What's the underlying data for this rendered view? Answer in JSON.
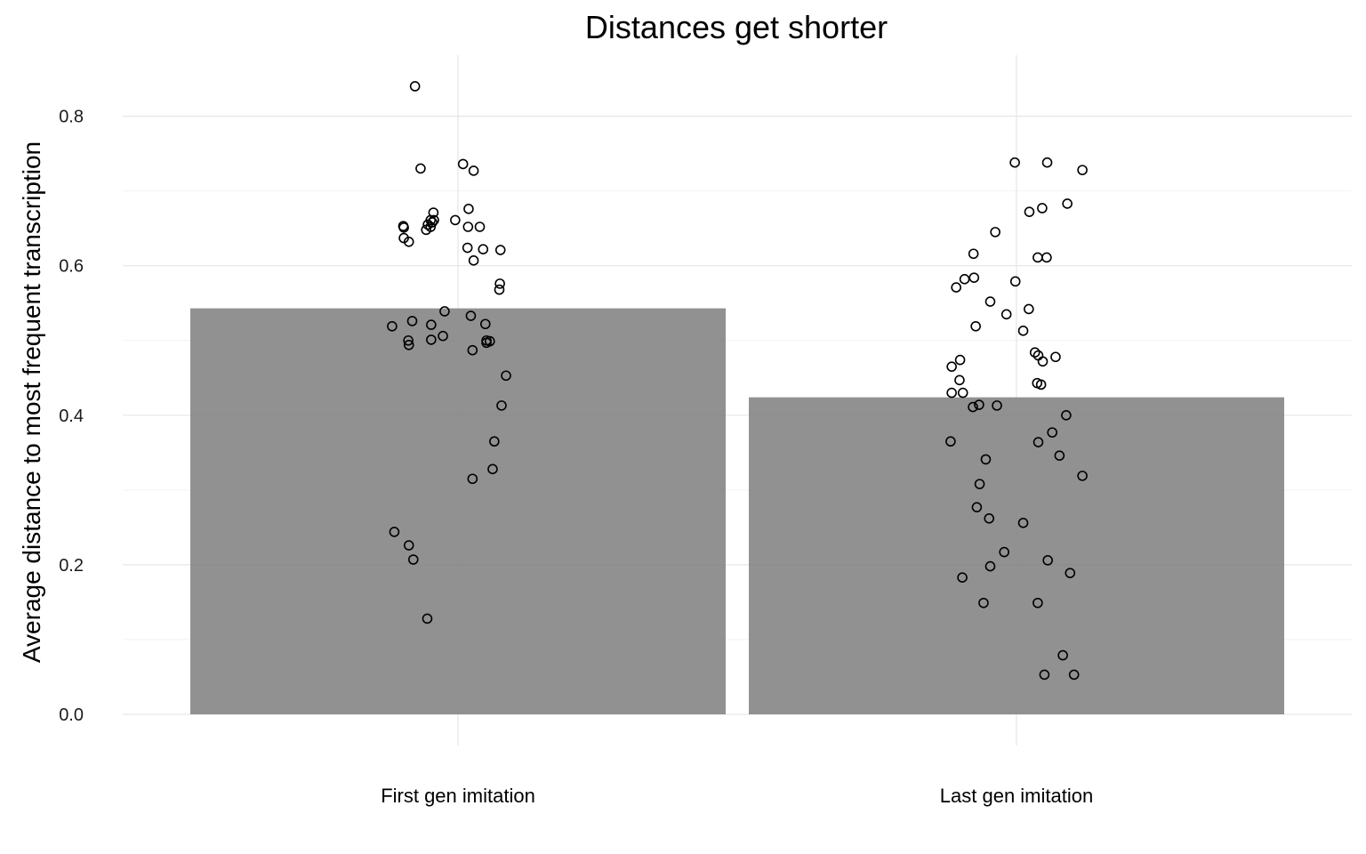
{
  "chart_data": {
    "type": "bar",
    "title": "Distances get shorter",
    "xlabel": "",
    "ylabel": "Average distance to most frequent transcription",
    "ylim": [
      0,
      0.88
    ],
    "yticks": [
      "0.0",
      "0.2",
      "0.4",
      "0.6",
      "0.8"
    ],
    "grid": true,
    "categories": [
      "First gen imitation",
      "Last gen imitation"
    ],
    "values": [
      0.543,
      0.424
    ],
    "points": [
      {
        "category": "First gen imitation",
        "jitter": [
          -0.077,
          -0.067,
          -0.098,
          -0.097,
          -0.088,
          -0.097,
          -0.049,
          -0.057,
          -0.054,
          -0.046,
          -0.044,
          -0.049,
          -0.043,
          -0.005,
          0.019,
          0.039,
          0.018,
          0.028,
          0.017,
          0.045,
          0.028,
          0.009,
          0.076,
          0.074,
          0.075,
          0.023,
          0.049,
          -0.048,
          -0.027,
          -0.089,
          -0.048,
          -0.024,
          -0.082,
          -0.118,
          -0.088,
          0.051,
          0.057,
          0.086,
          0.078,
          0.026,
          0.065,
          0.026,
          0.062,
          -0.114,
          -0.088,
          -0.08,
          -0.055,
          0.051
        ],
        "values": [
          0.84,
          0.73,
          0.653,
          0.637,
          0.632,
          0.651,
          0.652,
          0.648,
          0.655,
          0.658,
          0.671,
          0.661,
          0.661,
          0.661,
          0.676,
          0.652,
          0.652,
          0.607,
          0.624,
          0.622,
          0.727,
          0.736,
          0.621,
          0.568,
          0.576,
          0.533,
          0.522,
          0.521,
          0.506,
          0.5,
          0.501,
          0.539,
          0.526,
          0.519,
          0.494,
          0.497,
          0.499,
          0.453,
          0.413,
          0.487,
          0.365,
          0.315,
          0.328,
          0.244,
          0.226,
          0.207,
          0.128,
          0.5
        ]
      },
      {
        "category": "Last gen imitation",
        "jitter": [
          -0.003,
          0.055,
          0.118,
          0.091,
          0.046,
          0.023,
          -0.038,
          -0.077,
          -0.093,
          0.038,
          0.054,
          -0.108,
          -0.076,
          -0.047,
          -0.018,
          -0.002,
          -0.073,
          -0.116,
          -0.096,
          0.022,
          0.012,
          0.039,
          0.07,
          0.047,
          0.033,
          0.044,
          0.037,
          -0.116,
          0.089,
          -0.078,
          -0.035,
          0.077,
          0.064,
          0.039,
          -0.118,
          -0.055,
          0.118,
          -0.066,
          -0.071,
          -0.049,
          0.012,
          -0.022,
          0.056,
          0.096,
          -0.097,
          -0.047,
          -0.059,
          0.038,
          0.083,
          0.05,
          0.103,
          -0.067,
          -0.101,
          -0.102
        ],
        "values": [
          0.738,
          0.738,
          0.728,
          0.683,
          0.677,
          0.672,
          0.645,
          0.616,
          0.582,
          0.611,
          0.611,
          0.571,
          0.584,
          0.552,
          0.535,
          0.579,
          0.519,
          0.465,
          0.43,
          0.542,
          0.513,
          0.48,
          0.478,
          0.472,
          0.484,
          0.441,
          0.443,
          0.43,
          0.4,
          0.411,
          0.413,
          0.346,
          0.377,
          0.364,
          0.365,
          0.341,
          0.319,
          0.308,
          0.277,
          0.262,
          0.256,
          0.217,
          0.206,
          0.189,
          0.183,
          0.198,
          0.149,
          0.149,
          0.079,
          0.053,
          0.053,
          0.414,
          0.474,
          0.447
        ]
      }
    ]
  }
}
